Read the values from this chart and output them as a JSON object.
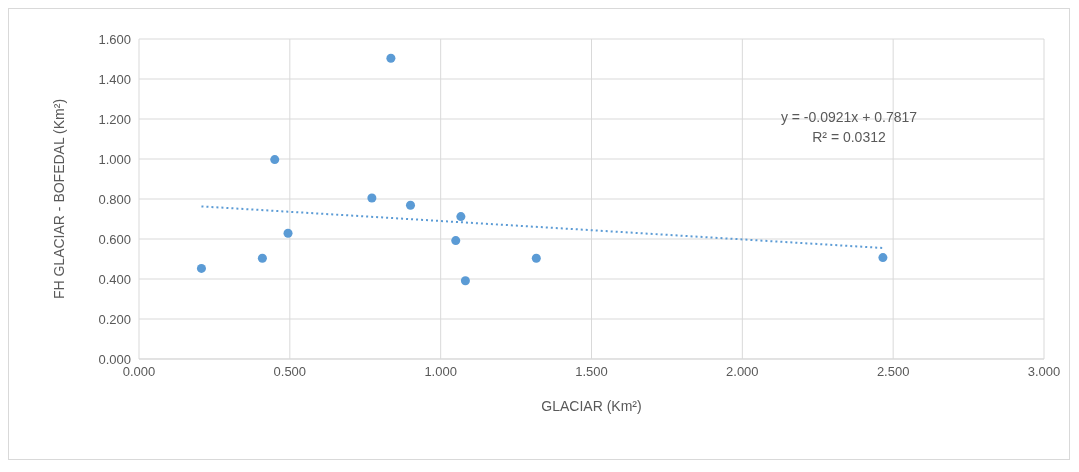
{
  "chart_data": {
    "type": "scatter",
    "xlabel": "GLACIAR (Km²)",
    "ylabel": "FH GLACIAR - BOFEDAL (Km²)",
    "x": [
      0.207,
      0.409,
      0.45,
      0.494,
      0.772,
      0.835,
      0.9,
      1.067,
      1.05,
      1.082,
      1.317,
      2.466
    ],
    "series": [
      {
        "color": "#5b9bd5",
        "marker": "circle",
        "values": [
          0.453,
          0.504,
          0.997,
          0.629,
          0.805,
          1.504,
          0.769,
          0.712,
          0.592,
          0.391,
          0.504,
          0.507
        ]
      },
      {
        "type": "line",
        "color": "#5b9bd5",
        "line_style": "dotted",
        "marker": "none",
        "x": [
          0.207,
          2.466
        ],
        "values": [
          0.763,
          0.555
        ]
      }
    ],
    "xlim": [
      0,
      3
    ],
    "xticks": [
      {
        "value": 0,
        "label": "0.000"
      },
      {
        "value": 0.5,
        "label": "0.500"
      },
      {
        "value": 1,
        "label": "1.000"
      },
      {
        "value": 1.5,
        "label": "1.500"
      },
      {
        "value": 2,
        "label": "2.000"
      },
      {
        "value": 2.5,
        "label": "2.500"
      },
      {
        "value": 3,
        "label": "3.000"
      }
    ],
    "ylim": [
      0,
      1.6
    ],
    "yticks": [
      {
        "value": 0,
        "label": "0.000"
      },
      {
        "value": 0.2,
        "label": "0.200"
      },
      {
        "value": 0.4,
        "label": "0.400"
      },
      {
        "value": 0.6,
        "label": "0.600"
      },
      {
        "value": 0.8,
        "label": "0.800"
      },
      {
        "value": 1,
        "label": "1.000"
      },
      {
        "value": 1.2,
        "label": "1.200"
      },
      {
        "value": 1.4,
        "label": "1.400"
      },
      {
        "value": 1.6,
        "label": "1.600"
      }
    ],
    "grid": true,
    "annotations": [
      "y = -0.0921x + 0.7817",
      "R² = 0.0312"
    ]
  }
}
